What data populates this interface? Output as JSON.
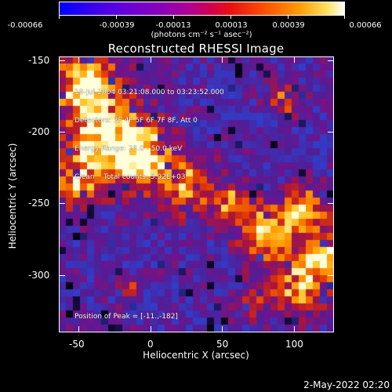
{
  "colorbar": {
    "tick_labels": [
      "-0.00066",
      "-0.00039",
      "-0.00013",
      "0.00013",
      "0.00039",
      "0.00066"
    ],
    "units": "(photons cm⁻² s⁻¹ asec⁻²)"
  },
  "title": "Reconstructed RHESSI Image",
  "annotation": {
    "time": "19-Jul-2004 03:21:08.000 to 03:23:52.000",
    "detectors": "Detectors: 3F 4F 5F 6F 7F 8F, Att 0",
    "energy": "Energy Range: 25.0 - 50.0 keV",
    "clean": "Clean    Total counts: 5.92E+03"
  },
  "peak": "Position of Peak = [-11.,-182]",
  "xaxis": {
    "label": "Heliocentric X (arcsec)",
    "ticks": [
      "-50",
      "0",
      "50",
      "100"
    ]
  },
  "yaxis": {
    "label": "Heliocentric Y (arcsec)",
    "ticks": [
      "-150",
      "-200",
      "-250",
      "-300"
    ]
  },
  "timestamp": "2-May-2022 02:20",
  "colors": {
    "background": "#000000",
    "low": "#0000ff",
    "mid": "#8b00b8",
    "high": "#ffffff"
  }
}
